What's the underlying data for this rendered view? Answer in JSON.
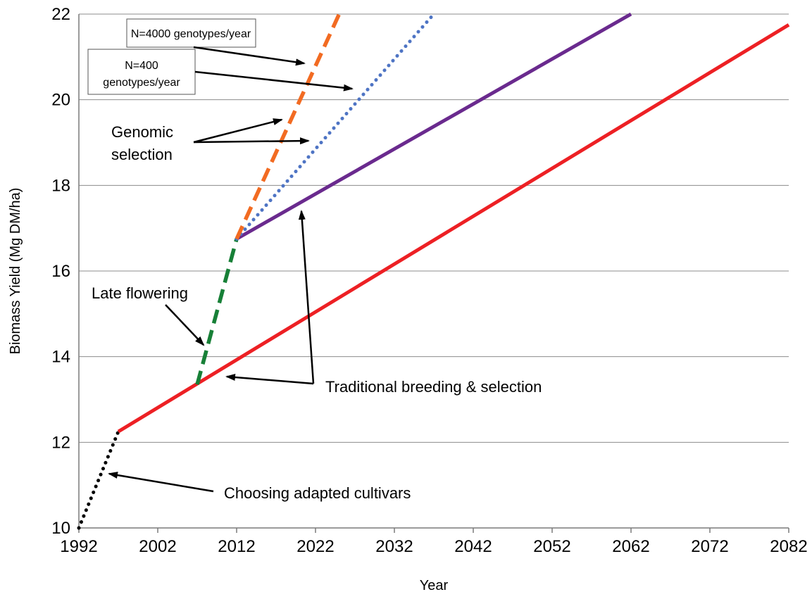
{
  "chart_data": {
    "type": "line",
    "xlabel": "Year",
    "ylabel": "Biomass Yield (Mg DM/ha)",
    "xlim": [
      1992,
      2082
    ],
    "ylim": [
      10,
      22
    ],
    "xticks": [
      "1992",
      "2002",
      "2012",
      "2022",
      "2032",
      "2042",
      "2052",
      "2062",
      "2072",
      "2082"
    ],
    "yticks": [
      "10",
      "12",
      "14",
      "16",
      "18",
      "20",
      "22"
    ],
    "grid": "horizontal",
    "series": [
      {
        "color": "#000000",
        "style": "dotted",
        "x": [
          1992,
          1997
        ],
        "y": [
          10.0,
          12.25
        ]
      },
      {
        "color": "#ed2024",
        "style": "solid",
        "x": [
          1997,
          2082
        ],
        "y": [
          12.25,
          21.75
        ]
      },
      {
        "color": "#178037",
        "style": "dashed",
        "x": [
          2007,
          2012
        ],
        "y": [
          13.35,
          16.75
        ]
      },
      {
        "color": "#6a2a8e",
        "style": "solid",
        "x": [
          2012,
          2062
        ],
        "y": [
          16.75,
          22.0
        ]
      },
      {
        "color": "#4e74c4",
        "style": "dotted",
        "x": [
          2012,
          2037
        ],
        "y": [
          16.75,
          22.0
        ]
      },
      {
        "color": "#f26b22",
        "style": "dashed",
        "x": [
          2012,
          2025
        ],
        "y": [
          16.75,
          22.0
        ]
      }
    ],
    "annotations": {
      "n4000": "N=4000 genotypes/year",
      "n400_line1": "N=400",
      "n400_line2": "genotypes/year",
      "genomic_line1": "Genomic",
      "genomic_line2": "selection",
      "late_flowering": "Late flowering",
      "traditional": "Traditional breeding & selection",
      "adapted": "Choosing adapted cultivars"
    }
  }
}
